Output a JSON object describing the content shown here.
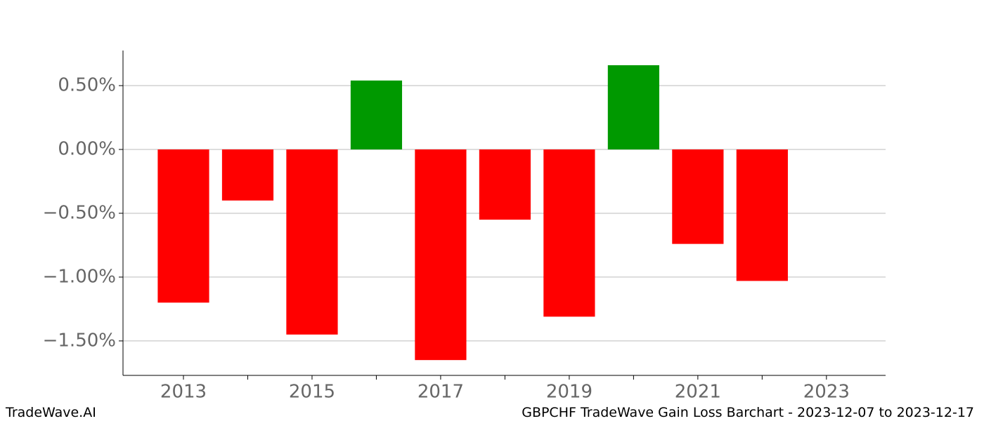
{
  "chart_data": {
    "type": "bar",
    "title": "GBPCHF TradeWave Gain Loss Barchart - 2023-12-07 to 2023-12-17",
    "brand": "TradeWave.AI",
    "x": [
      2013,
      2014,
      2015,
      2016,
      2017,
      2018,
      2019,
      2020,
      2021,
      2022
    ],
    "values": [
      -1.2,
      -0.4,
      -1.45,
      0.54,
      -1.65,
      -0.55,
      -1.31,
      0.66,
      -0.74,
      -1.03
    ],
    "positive_color": "#009900",
    "negative_color": "#ff0000",
    "xlim": [
      2012.06,
      2023.92
    ],
    "xticks": [
      2013,
      2015,
      2017,
      2019,
      2021,
      2023
    ],
    "xminorticks": [
      2014,
      2016,
      2018,
      2020,
      2022
    ],
    "ylim": [
      -1.77,
      0.775
    ],
    "yticks": [
      {
        "value": 0.5,
        "label": "0.50%"
      },
      {
        "value": 0,
        "label": "0.00%"
      },
      {
        "value": -0.5,
        "label": "−0.50%"
      },
      {
        "value": -1,
        "label": "−1.00%"
      },
      {
        "value": -1.5,
        "label": "−1.50%"
      }
    ],
    "grid": true
  }
}
